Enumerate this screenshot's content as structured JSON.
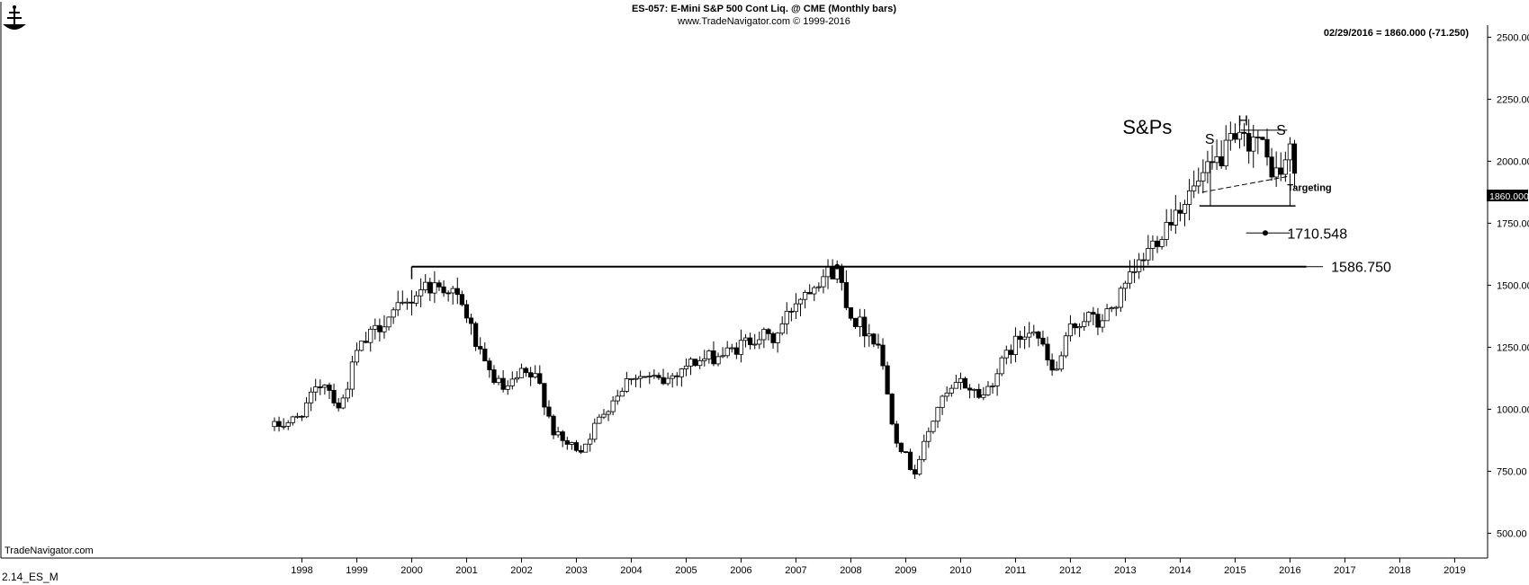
{
  "header": {
    "title": "ES-057:  E-Mini S&P 500 Cont Liq. @ CME  (Monthly bars)",
    "subtitle": "www.TradeNavigator.com © 1999-2016",
    "last_bar_info": "02/29/2016 = 1860.000 (-71.250)",
    "current_price_label": "1860.000"
  },
  "footer": {
    "watermark": "TradeNavigator.com",
    "file_label": "2.14_ES_M"
  },
  "logo": {
    "icon": "ship-logo-icon"
  },
  "colors": {
    "ink": "#000000",
    "background": "#ffffff"
  },
  "chart_data": {
    "type": "candlestick",
    "title": "ES-057:  E-Mini S&P 500 Cont Liq. @ CME  (Monthly bars)",
    "y_axis": {
      "position": "right",
      "ylim": [
        400,
        2650
      ],
      "ticks": [
        500,
        750,
        1000,
        1250,
        1500,
        1750,
        2000,
        2250,
        2500
      ],
      "tick_labels": [
        "500.00",
        "750.00",
        "1000.00",
        "1250.00",
        "1500.00",
        "1750.00",
        "2000.00",
        "2250.00",
        "2500.00"
      ]
    },
    "x_axis": {
      "xlim": [
        1992.5,
        2019.6
      ],
      "year_ticks": [
        1998,
        1999,
        2000,
        2001,
        2002,
        2003,
        2004,
        2005,
        2006,
        2007,
        2008,
        2009,
        2010,
        2011,
        2012,
        2013,
        2014,
        2015,
        2016,
        2017,
        2018,
        2019
      ],
      "tick_labels": [
        "1998",
        "1999",
        "2000",
        "2001",
        "2002",
        "2003",
        "2004",
        "2005",
        "2006",
        "2007",
        "2008",
        "2009",
        "2010",
        "2011",
        "2012",
        "2013",
        "2014",
        "2015",
        "2016",
        "2017",
        "2018",
        "2019"
      ]
    },
    "grid": false,
    "series": [
      {
        "anchors": [
          [
            1997.5,
            930
          ],
          [
            1997.9,
            960
          ],
          [
            1998.4,
            1120
          ],
          [
            1998.7,
            1000
          ],
          [
            1999.0,
            1230
          ],
          [
            1999.5,
            1360
          ],
          [
            1999.9,
            1420
          ],
          [
            2000.2,
            1500
          ],
          [
            2000.7,
            1490
          ],
          [
            2001.0,
            1380
          ],
          [
            2001.3,
            1180
          ],
          [
            2001.7,
            1070
          ],
          [
            2002.0,
            1140
          ],
          [
            2002.3,
            1120
          ],
          [
            2002.6,
            900
          ],
          [
            2002.8,
            860
          ],
          [
            2003.1,
            840
          ],
          [
            2003.5,
            990
          ],
          [
            2004.0,
            1140
          ],
          [
            2004.6,
            1110
          ],
          [
            2005.0,
            1180
          ],
          [
            2005.8,
            1230
          ],
          [
            2006.3,
            1300
          ],
          [
            2006.6,
            1280
          ],
          [
            2007.0,
            1440
          ],
          [
            2007.4,
            1530
          ],
          [
            2007.75,
            1565
          ],
          [
            2008.0,
            1380
          ],
          [
            2008.5,
            1270
          ],
          [
            2008.8,
            900
          ],
          [
            2009.15,
            740
          ],
          [
            2009.6,
            1020
          ],
          [
            2010.0,
            1110
          ],
          [
            2010.4,
            1050
          ],
          [
            2010.9,
            1240
          ],
          [
            2011.3,
            1350
          ],
          [
            2011.7,
            1130
          ],
          [
            2012.0,
            1320
          ],
          [
            2012.3,
            1380
          ],
          [
            2012.5,
            1340
          ],
          [
            2012.9,
            1450
          ],
          [
            2013.3,
            1600
          ],
          [
            2013.9,
            1800
          ],
          [
            2014.5,
            1950
          ],
          [
            2014.9,
            2060
          ],
          [
            2015.4,
            2100
          ],
          [
            2015.6,
            1990
          ],
          [
            2015.8,
            1940
          ],
          [
            2016.0,
            2040
          ],
          [
            2016.1,
            1940
          ],
          [
            2016.16,
            1860
          ]
        ]
      }
    ],
    "annotations": {
      "label": "S&Ps",
      "pattern_labels": [
        "S",
        "H",
        "S"
      ],
      "targeting_label": "Targeting",
      "level_1": "1710.548",
      "level_2": "1586.750",
      "neckline_value": 1820,
      "head_top_value": 2125,
      "resistance_value": 1575
    }
  }
}
